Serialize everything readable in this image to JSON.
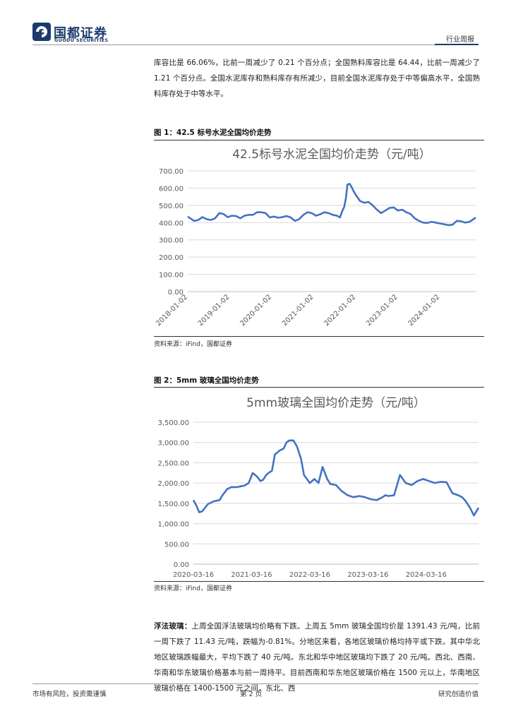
{
  "header": {
    "logo_cn": "国都证券",
    "logo_en": "GUODU SECURITIES",
    "report_type": "行业周报"
  },
  "paragraph1": "库容比是 66.06%，比前一周减少了 0.21 个百分点；全国熟料库容比是 64.44，比前一周减少了 1.21 个百分点。全国水泥库存和熟料库存有所减少，目前全国水泥库存处于中等偏高水平，全国熟料库存处于中等水平。",
  "figure1": {
    "label": "图 1：42.5 标号水泥全国均价走势",
    "source": "资料来源：iFind，国都证券"
  },
  "figure2": {
    "label": "图 2：5mm 玻璃全国均价走势",
    "source": "资料来源：iFind，国都证券"
  },
  "paragraph2": {
    "lead": "浮法玻璃：",
    "text": "上周全国浮法玻璃均价略有下跌。上周五 5mm 玻璃全国均价是 1391.43 元/吨，比前一周下跌了 11.43 元/吨，跌幅为-0.81%。分地区来看，各地区玻璃价格均持平或下跌。其中华北地区玻璃跌幅最大，平均下跌了 40 元/吨。东北和华中地区玻璃均下跌了 20 元/吨。西北、西南、华南和华东玻璃价格基本与前一周持平。目前西南和华东地区玻璃价格在 1500 元以上，华南地区玻璃价格在 1400-1500 元之间，东北、西"
  },
  "footer": {
    "left": "市场有风险，投资需谨慎",
    "page": "第 2 页",
    "right": "研究创造价值"
  },
  "colors": {
    "brand": "#1b3a6b",
    "series": "#4472c4"
  },
  "chart_data": [
    {
      "type": "line",
      "title": "42.5标号水泥全国均价走势（元/吨）",
      "x_ticks": [
        "2018-01-02",
        "2019-01-02",
        "2020-01-02",
        "2021-01-02",
        "2022-01-02",
        "2023-01-02",
        "2024-01-02"
      ],
      "y_ticks": [
        "0.00",
        "100.00",
        "200.00",
        "300.00",
        "400.00",
        "500.00",
        "600.00",
        "700.00"
      ],
      "ylim": [
        0,
        700
      ],
      "x_range": [
        2018.0,
        2024.85
      ],
      "series": [
        {
          "x": [
            2018.0,
            2018.06,
            2018.15,
            2018.25,
            2018.35,
            2018.45,
            2018.55,
            2018.65,
            2018.75,
            2018.85,
            2018.95,
            2019.05,
            2019.15,
            2019.25,
            2019.35,
            2019.45,
            2019.55,
            2019.65,
            2019.75,
            2019.85,
            2019.95,
            2020.05,
            2020.15,
            2020.25,
            2020.35,
            2020.45,
            2020.55,
            2020.65,
            2020.75,
            2020.85,
            2020.95,
            2021.05,
            2021.15,
            2021.25,
            2021.35,
            2021.45,
            2021.55,
            2021.62,
            2021.68,
            2021.72,
            2021.76,
            2021.8,
            2021.85,
            2021.9,
            2021.95,
            2022.0,
            2022.1,
            2022.2,
            2022.3,
            2022.4,
            2022.5,
            2022.6,
            2022.7,
            2022.8,
            2022.9,
            2023.0,
            2023.1,
            2023.2,
            2023.3,
            2023.4,
            2023.5,
            2023.6,
            2023.7,
            2023.8,
            2023.9,
            2024.0,
            2024.1,
            2024.2,
            2024.3,
            2024.4,
            2024.5,
            2024.6,
            2024.7,
            2024.8,
            2024.85
          ],
          "y": [
            435,
            425,
            410,
            415,
            432,
            420,
            415,
            425,
            455,
            450,
            432,
            440,
            438,
            425,
            440,
            445,
            445,
            460,
            460,
            455,
            430,
            435,
            428,
            432,
            438,
            430,
            410,
            420,
            445,
            460,
            455,
            440,
            448,
            460,
            455,
            445,
            440,
            430,
            470,
            490,
            540,
            620,
            625,
            605,
            580,
            560,
            525,
            515,
            520,
            500,
            475,
            455,
            470,
            485,
            488,
            470,
            475,
            460,
            450,
            425,
            410,
            400,
            398,
            405,
            400,
            395,
            390,
            385,
            388,
            410,
            408,
            400,
            405,
            420,
            430
          ]
        }
      ]
    },
    {
      "type": "line",
      "title": "5mm玻璃全国均价走势（元/吨）",
      "x_ticks": [
        "2020-03-16",
        "2021-03-16",
        "2022-03-16",
        "2023-03-16",
        "2024-03-16"
      ],
      "y_ticks": [
        "0.00",
        "500.00",
        "1,000.00",
        "1,500.00",
        "2,000.00",
        "2,500.00",
        "3,000.00",
        "3,500.00"
      ],
      "ylim": [
        0,
        3500
      ],
      "x_range": [
        2020.0,
        2024.9
      ],
      "series": [
        {
          "x": [
            2020.0,
            2020.05,
            2020.1,
            2020.15,
            2020.25,
            2020.35,
            2020.45,
            2020.5,
            2020.58,
            2020.65,
            2020.75,
            2020.82,
            2020.88,
            2020.95,
            2021.02,
            2021.1,
            2021.15,
            2021.2,
            2021.25,
            2021.3,
            2021.35,
            2021.4,
            2021.48,
            2021.55,
            2021.6,
            2021.65,
            2021.72,
            2021.78,
            2021.85,
            2021.9,
            2021.95,
            2022.0,
            2022.08,
            2022.15,
            2022.22,
            2022.3,
            2022.35,
            2022.45,
            2022.55,
            2022.65,
            2022.75,
            2022.85,
            2022.95,
            2023.05,
            2023.15,
            2023.25,
            2023.3,
            2023.35,
            2023.45,
            2023.55,
            2023.65,
            2023.75,
            2023.85,
            2023.95,
            2024.05,
            2024.15,
            2024.25,
            2024.35,
            2024.45,
            2024.55,
            2024.62,
            2024.68,
            2024.75,
            2024.82,
            2024.9
          ],
          "y": [
            1580,
            1450,
            1280,
            1300,
            1480,
            1550,
            1580,
            1700,
            1850,
            1900,
            1900,
            1920,
            1940,
            2000,
            2250,
            2150,
            2050,
            2080,
            2200,
            2260,
            2300,
            2700,
            2800,
            2850,
            3000,
            3050,
            3050,
            2900,
            2600,
            2200,
            2100,
            2000,
            2100,
            2000,
            2400,
            2100,
            1980,
            1950,
            1800,
            1700,
            1650,
            1680,
            1650,
            1600,
            1580,
            1650,
            1700,
            1680,
            1700,
            2200,
            2000,
            1950,
            2050,
            2100,
            2050,
            2000,
            2030,
            2020,
            1750,
            1700,
            1650,
            1550,
            1400,
            1200,
            1390
          ]
        }
      ]
    }
  ]
}
